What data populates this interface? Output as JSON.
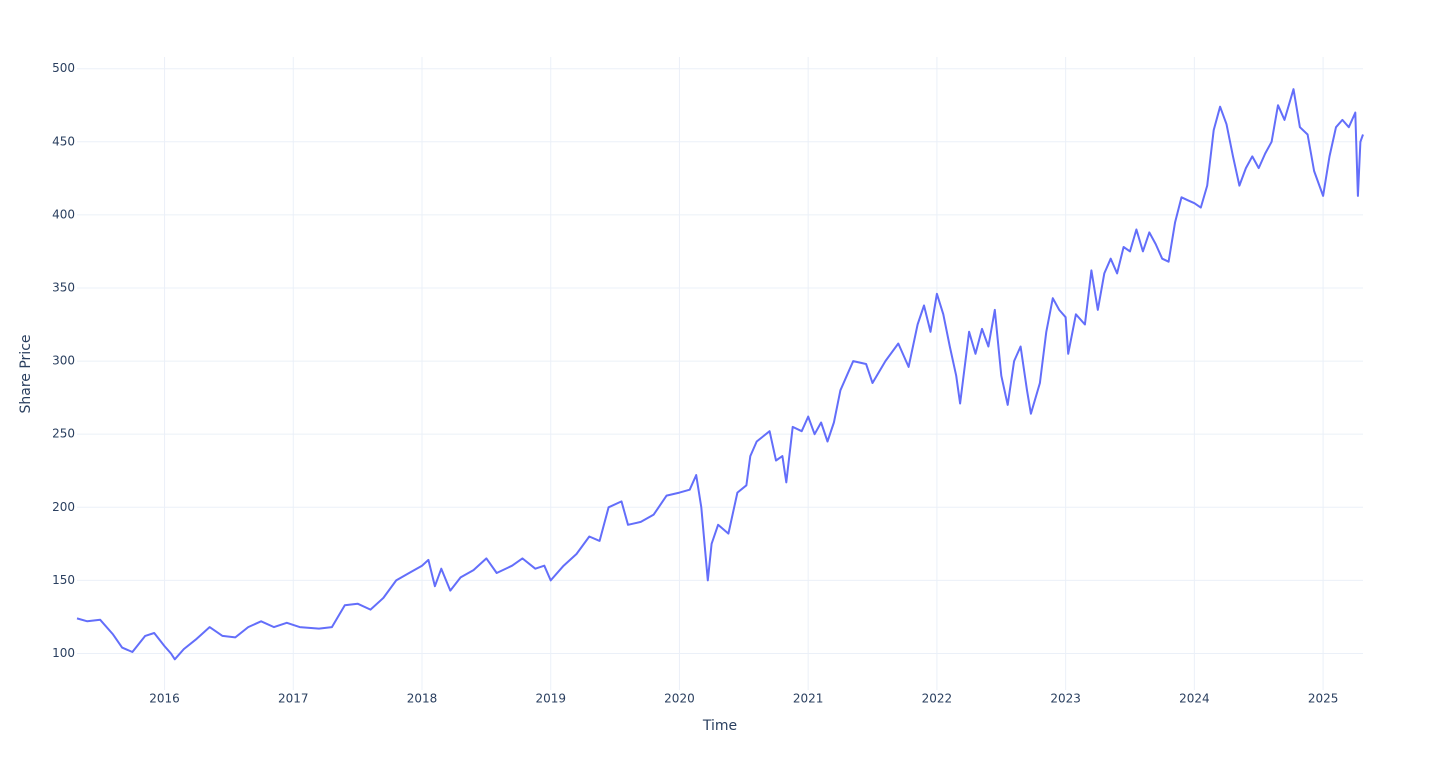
{
  "chart_data": {
    "type": "line",
    "x_label": "Time",
    "y_label": "Share Price",
    "x": [
      2015.32,
      2015.4,
      2015.5,
      2015.6,
      2015.67,
      2015.75,
      2015.85,
      2015.92,
      2016.0,
      2016.05,
      2016.08,
      2016.15,
      2016.25,
      2016.35,
      2016.45,
      2016.55,
      2016.65,
      2016.75,
      2016.85,
      2016.95,
      2017.05,
      2017.2,
      2017.3,
      2017.4,
      2017.5,
      2017.6,
      2017.7,
      2017.8,
      2017.9,
      2018.0,
      2018.05,
      2018.1,
      2018.15,
      2018.22,
      2018.3,
      2018.4,
      2018.5,
      2018.58,
      2018.7,
      2018.78,
      2018.88,
      2018.95,
      2019.0,
      2019.1,
      2019.2,
      2019.3,
      2019.38,
      2019.45,
      2019.55,
      2019.6,
      2019.7,
      2019.8,
      2019.9,
      2020.0,
      2020.08,
      2020.13,
      2020.17,
      2020.22,
      2020.25,
      2020.3,
      2020.38,
      2020.45,
      2020.52,
      2020.55,
      2020.6,
      2020.7,
      2020.75,
      2020.8,
      2020.83,
      2020.88,
      2020.95,
      2021.0,
      2021.05,
      2021.1,
      2021.15,
      2021.2,
      2021.25,
      2021.3,
      2021.35,
      2021.45,
      2021.5,
      2021.6,
      2021.7,
      2021.78,
      2021.85,
      2021.9,
      2021.95,
      2022.0,
      2022.05,
      2022.1,
      2022.15,
      2022.18,
      2022.25,
      2022.3,
      2022.35,
      2022.4,
      2022.45,
      2022.5,
      2022.55,
      2022.6,
      2022.65,
      2022.7,
      2022.73,
      2022.8,
      2022.85,
      2022.9,
      2022.95,
      2023.0,
      2023.02,
      2023.08,
      2023.15,
      2023.2,
      2023.25,
      2023.3,
      2023.35,
      2023.4,
      2023.45,
      2023.5,
      2023.55,
      2023.6,
      2023.65,
      2023.7,
      2023.75,
      2023.8,
      2023.85,
      2023.9,
      2023.95,
      2024.0,
      2024.05,
      2024.1,
      2024.15,
      2024.2,
      2024.25,
      2024.3,
      2024.35,
      2024.4,
      2024.45,
      2024.5,
      2024.55,
      2024.6,
      2024.65,
      2024.7,
      2024.77,
      2024.82,
      2024.88,
      2024.93,
      2025.0,
      2025.05,
      2025.1,
      2025.15,
      2025.2,
      2025.25,
      2025.27,
      2025.29,
      2025.31
    ],
    "values": [
      124,
      122,
      123,
      113,
      104,
      101,
      112,
      114,
      105,
      100,
      96,
      103,
      110,
      118,
      112,
      111,
      118,
      122,
      118,
      121,
      118,
      117,
      118,
      133,
      134,
      130,
      138,
      150,
      155,
      160,
      164,
      146,
      158,
      143,
      152,
      157,
      165,
      155,
      160,
      165,
      158,
      160,
      150,
      160,
      168,
      180,
      177,
      200,
      204,
      188,
      190,
      195,
      208,
      210,
      212,
      222,
      200,
      150,
      175,
      188,
      182,
      210,
      215,
      235,
      245,
      252,
      232,
      235,
      217,
      255,
      252,
      262,
      250,
      258,
      245,
      258,
      280,
      290,
      300,
      298,
      285,
      300,
      312,
      296,
      325,
      338,
      320,
      346,
      332,
      310,
      290,
      271,
      320,
      305,
      322,
      310,
      335,
      290,
      270,
      300,
      310,
      280,
      264,
      285,
      320,
      343,
      335,
      330,
      305,
      332,
      325,
      362,
      335,
      360,
      370,
      360,
      378,
      375,
      390,
      375,
      388,
      380,
      370,
      368,
      395,
      412,
      410,
      408,
      405,
      420,
      458,
      474,
      462,
      440,
      420,
      432,
      440,
      432,
      442,
      450,
      475,
      465,
      486,
      460,
      455,
      430,
      413,
      440,
      460,
      465,
      460,
      470,
      413,
      450,
      455
    ],
    "color": "#636efa",
    "xlim": [
      2015.32,
      2025.31
    ],
    "xticks": [
      2016,
      2017,
      2018,
      2019,
      2020,
      2021,
      2022,
      2023,
      2024,
      2025
    ],
    "ylim": [
      75,
      508
    ],
    "yticks": [
      100,
      150,
      200,
      250,
      300,
      350,
      400,
      450,
      500
    ],
    "grid": true
  }
}
